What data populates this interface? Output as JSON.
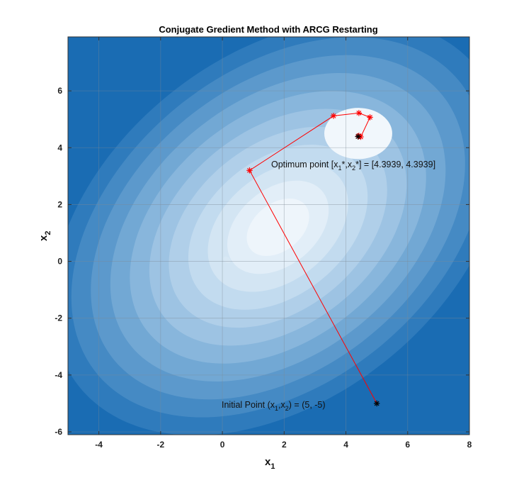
{
  "chart_data": {
    "type": "line",
    "title": "Conjugate Gredient Method with ARCG Restarting",
    "xlabel": {
      "base": "x",
      "sub": "1"
    },
    "ylabel": {
      "base": "x",
      "sub": "2"
    },
    "xlim": [
      -5,
      8
    ],
    "ylim": [
      -6.1,
      7.9
    ],
    "xticks": [
      -4,
      -2,
      0,
      2,
      4,
      6,
      8
    ],
    "yticks": [
      -6,
      -4,
      -2,
      0,
      2,
      4,
      6
    ],
    "grid": true,
    "background": "filled-contour",
    "contour_colors": [
      "#eef5fb",
      "#e2eef8",
      "#d3e5f3",
      "#c2dbef",
      "#b0cfe9",
      "#9dc3e3",
      "#88b6dc",
      "#72a8d4",
      "#5c99cc",
      "#458ac4",
      "#2f7bbc",
      "#1a6cb3"
    ],
    "path_color": "#ff0000",
    "initial_marker_color": "#000000",
    "series": [
      {
        "x": [
          5.0,
          0.88,
          3.6,
          4.42,
          4.78,
          4.48,
          4.42,
          4.3939
        ],
        "y": [
          -5.0,
          3.2,
          5.12,
          5.22,
          5.07,
          4.38,
          4.42,
          4.3939
        ]
      }
    ],
    "optimum": {
      "x": 4.3939,
      "y": 4.3939
    },
    "initial": {
      "x": 5,
      "y": -5
    },
    "annotations": {
      "optimum": {
        "prefix": "Optimum point [x",
        "s1": "1",
        "mid1": "*,x",
        "s2": "2",
        "suffix": "*] = [4.3939, 4.3939]"
      },
      "initial": {
        "prefix": "Initial Point (x",
        "s1": "1",
        "mid1": ",x",
        "s2": "2",
        "suffix": ") = (5, -5)"
      }
    }
  }
}
